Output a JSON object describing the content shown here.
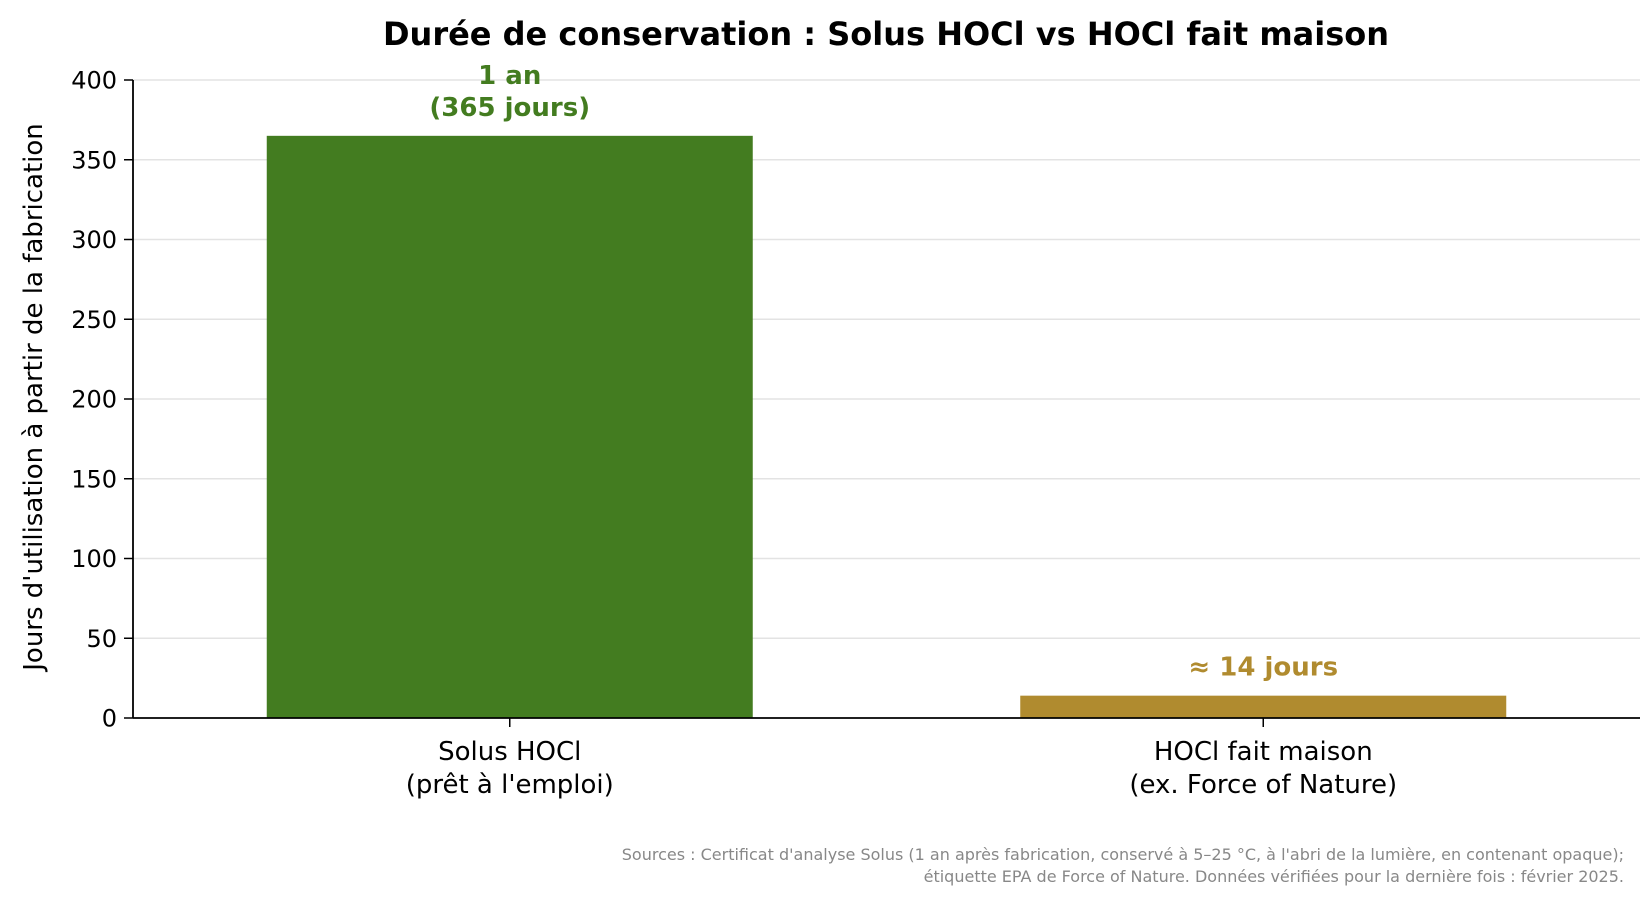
{
  "chart_data": {
    "type": "bar",
    "title": "Durée de conservation : Solus HOCl vs HOCl fait maison",
    "xlabel": "",
    "ylabel": "Jours d'utilisation à partir de la fabrication",
    "ylim": [
      0,
      400
    ],
    "yticks": [
      "0",
      "50",
      "100",
      "150",
      "200",
      "250",
      "300",
      "350",
      "400"
    ],
    "grid": true,
    "categories": [
      [
        "Solus HOCl",
        "(prêt à l'emploi)"
      ],
      [
        "HOCl fait maison",
        "(ex. Force of Nature)"
      ]
    ],
    "values": [
      365,
      14
    ],
    "colors": [
      "#437c20",
      "#b08b2f"
    ],
    "data_labels": [
      [
        "1 an",
        "(365 jours)"
      ],
      [
        "≈ 14 jours"
      ]
    ],
    "source_note": [
      "Sources : Certificat d'analyse Solus (1 an après fabrication, conservé à 5–25 °C, à l'abri de la lumière, en contenant opaque);",
      "étiquette EPA de Force of Nature. Données vérifiées pour la dernière fois : février 2025."
    ]
  }
}
